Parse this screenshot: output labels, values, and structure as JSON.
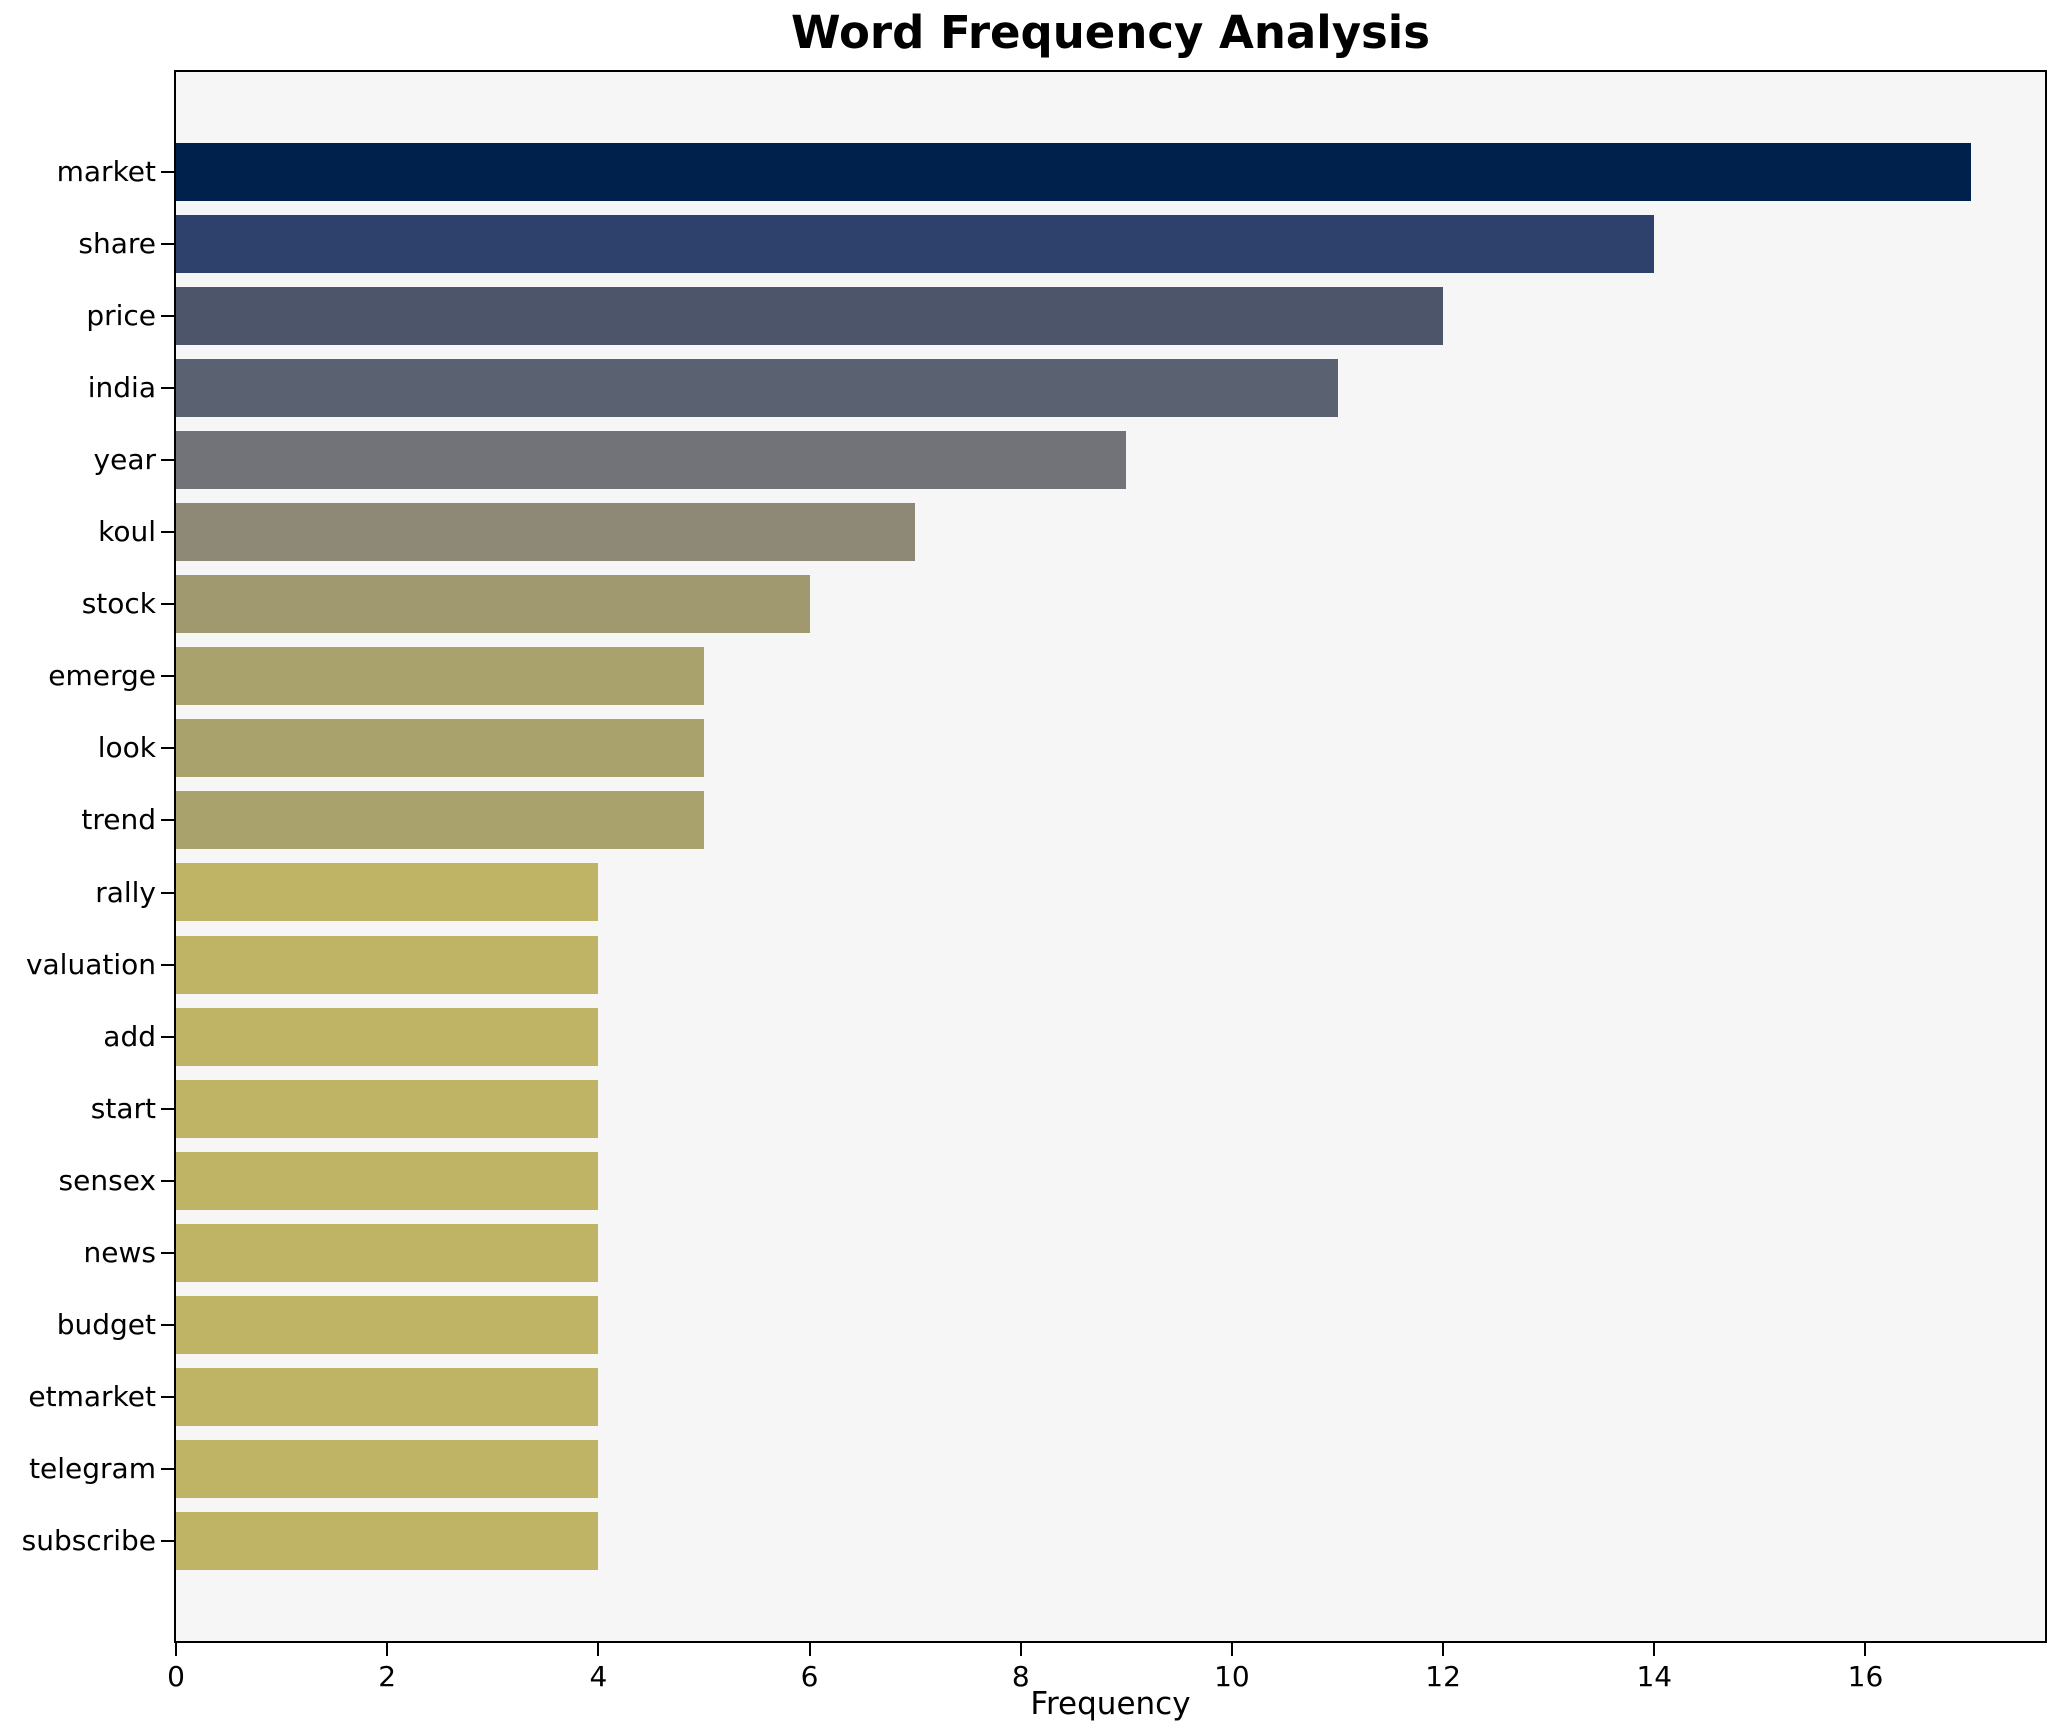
{
  "chart_data": {
    "type": "bar",
    "orientation": "horizontal",
    "title": "Word Frequency Analysis",
    "xlabel": "Frequency",
    "ylabel": "",
    "categories": [
      "market",
      "share",
      "price",
      "india",
      "year",
      "koul",
      "stock",
      "emerge",
      "look",
      "trend",
      "rally",
      "valuation",
      "add",
      "start",
      "sensex",
      "news",
      "budget",
      "etmarket",
      "telegram",
      "subscribe"
    ],
    "values": [
      17,
      14,
      12,
      11,
      9,
      7,
      6,
      5,
      5,
      5,
      4,
      4,
      4,
      4,
      4,
      4,
      4,
      4,
      4,
      4
    ],
    "bar_colors": [
      "#01214d",
      "#2e416d",
      "#4c5569",
      "#5a6170",
      "#727379",
      "#8e8977",
      "#a0986f",
      "#aaa26c",
      "#aaa26c",
      "#aaa26c",
      "#bfb366",
      "#bfb366",
      "#bfb366",
      "#bfb366",
      "#bfb366",
      "#bfb366",
      "#bfb366",
      "#bfb366",
      "#bfb366",
      "#bfb366"
    ],
    "x_ticks": [
      0,
      2,
      4,
      6,
      8,
      10,
      12,
      14,
      16
    ],
    "xlim": [
      0,
      17.7
    ],
    "grid": false,
    "legend": "none",
    "plot_background": "#f6f6f6"
  }
}
